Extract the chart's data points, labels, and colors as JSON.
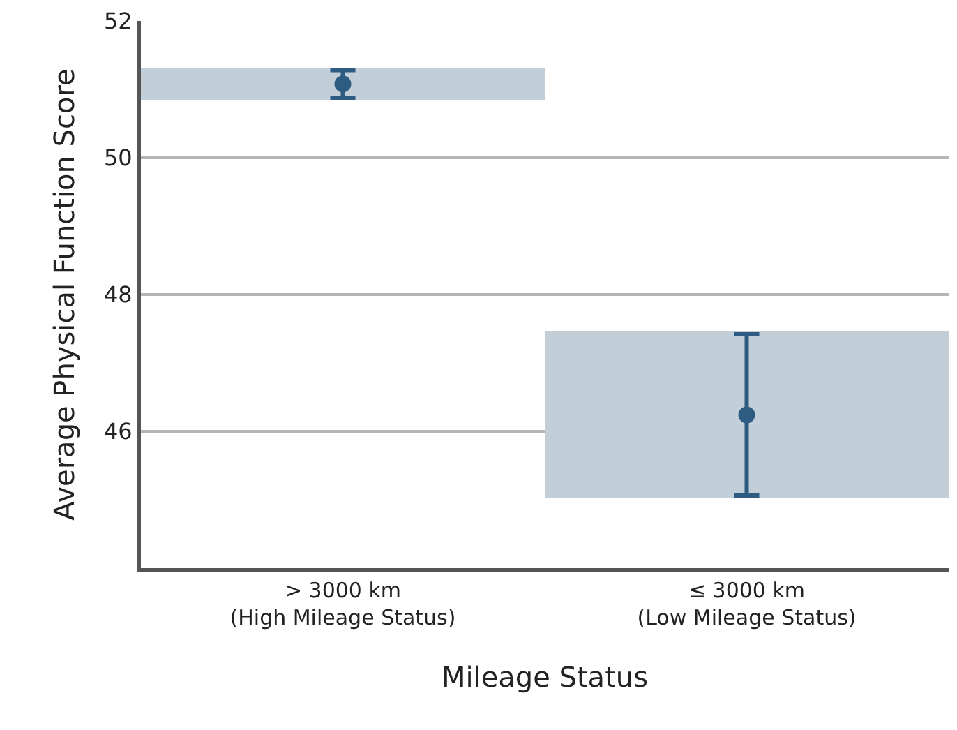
{
  "chart_data": {
    "type": "bar",
    "xlabel": "Mileage Status",
    "ylabel": "Average Physical Function Score",
    "categories": [
      "> 3000 km\n(High Mileage Status)",
      "≤ 3000 km\n(Low Mileage Status)"
    ],
    "series": [
      {
        "type": "bar",
        "color": "#c2ced8",
        "values": [
          0.47,
          2.44
        ],
        "base": [
          50.83,
          45.03
        ]
      },
      {
        "type": "scatter",
        "color": "#2e5b82",
        "marker": "circle",
        "x": [
          "> 3000 km\n(High Mileage Status)",
          "≤ 3000 km\n(Low Mileage Status)"
        ],
        "values": [
          51.08,
          46.24
        ],
        "errors": [
          [
            50.87,
            51.28
          ],
          [
            45.06,
            47.42
          ]
        ]
      }
    ],
    "ylim": [
      44,
      52
    ],
    "yticks": [
      46,
      48,
      50,
      52
    ],
    "grid": "y",
    "legend": false
  }
}
